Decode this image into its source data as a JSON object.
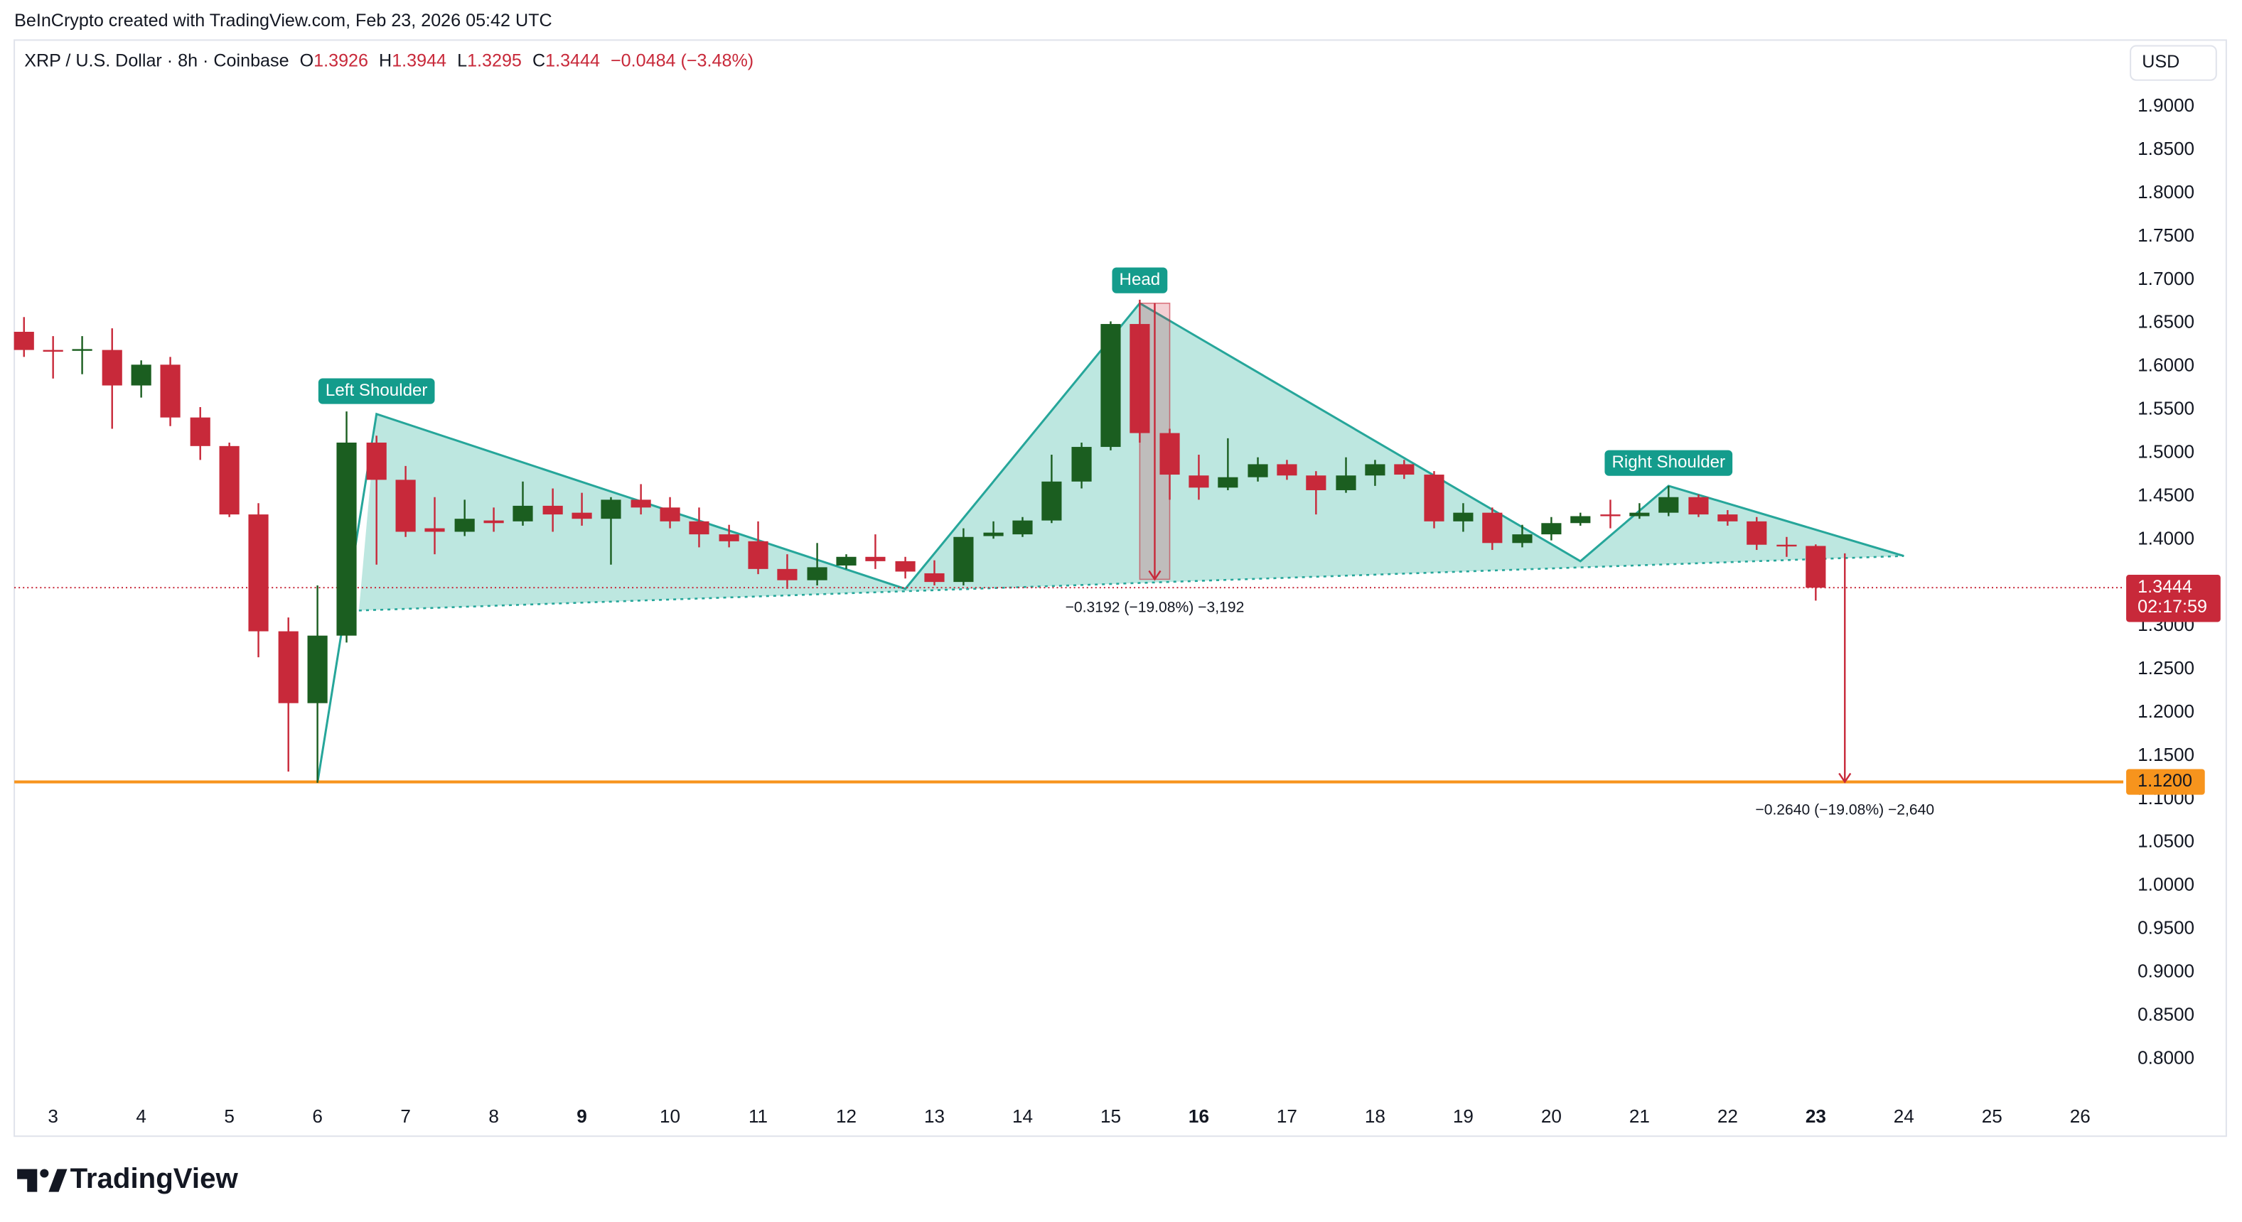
{
  "chart_data": {
    "type": "candlestick",
    "credit": "BeInCrypto created with TradingView.com, Feb 23, 2026 05:42 UTC",
    "title": "XRP / U.S. Dollar · 8h · Coinbase",
    "ohlc_labels": [
      "O",
      "H",
      "L",
      "C"
    ],
    "change": "−0.0484 (−3.48%)",
    "currency": "USD",
    "brand": "TradingView",
    "countdown": "02:17:59",
    "up_color": "#1b5e20",
    "down_color": "#c8293a",
    "candles": {
      "x": [
        2.67,
        3,
        3.33,
        3.67,
        4,
        4.33,
        4.67,
        5,
        5.33,
        5.67,
        6,
        6.33,
        6.67,
        7,
        7.33,
        7.67,
        8,
        8.33,
        8.67,
        9,
        9.33,
        9.67,
        10,
        10.33,
        10.67,
        11,
        11.33,
        11.67,
        12,
        12.33,
        12.67,
        13,
        13.33,
        13.67,
        14,
        14.33,
        14.67,
        15,
        15.33,
        15.67,
        16,
        16.33,
        16.67,
        17,
        17.33,
        17.67,
        18,
        18.33,
        18.67,
        19,
        19.33,
        19.67,
        20,
        20.33,
        20.67,
        21,
        21.33,
        21.67,
        22,
        22.33,
        22.67,
        23
      ],
      "open": [
        1.64,
        1.619,
        1.619,
        1.619,
        1.578,
        1.602,
        1.541,
        1.508,
        1.429,
        1.294,
        1.211,
        1.289,
        1.512,
        1.469,
        1.413,
        1.409,
        1.422,
        1.421,
        1.439,
        1.431,
        1.424,
        1.446,
        1.437,
        1.421,
        1.406,
        1.398,
        1.366,
        1.353,
        1.37,
        1.38,
        1.375,
        1.361,
        1.351,
        1.404,
        1.406,
        1.422,
        1.467,
        1.507,
        1.649,
        1.523,
        1.474,
        1.46,
        1.472,
        1.487,
        1.474,
        1.457,
        1.474,
        1.487,
        1.475,
        1.421,
        1.431,
        1.396,
        1.406,
        1.419,
        1.429,
        1.427,
        1.431,
        1.449,
        1.429,
        1.421,
        1.394,
        1.3926
      ],
      "high": [
        1.657,
        1.635,
        1.635,
        1.644,
        1.607,
        1.611,
        1.553,
        1.512,
        1.442,
        1.31,
        1.347,
        1.548,
        1.52,
        1.485,
        1.449,
        1.446,
        1.437,
        1.467,
        1.459,
        1.454,
        1.449,
        1.464,
        1.449,
        1.437,
        1.417,
        1.421,
        1.383,
        1.396,
        1.383,
        1.406,
        1.38,
        1.376,
        1.413,
        1.421,
        1.426,
        1.498,
        1.512,
        1.652,
        1.677,
        1.528,
        1.498,
        1.517,
        1.495,
        1.492,
        1.479,
        1.495,
        1.492,
        1.492,
        1.479,
        1.442,
        1.437,
        1.417,
        1.426,
        1.431,
        1.446,
        1.442,
        1.462,
        1.452,
        1.434,
        1.426,
        1.403,
        1.3944
      ],
      "low": [
        1.611,
        1.586,
        1.591,
        1.528,
        1.564,
        1.531,
        1.492,
        1.426,
        1.264,
        1.132,
        1.119,
        1.281,
        1.371,
        1.403,
        1.383,
        1.404,
        1.409,
        1.416,
        1.409,
        1.416,
        1.371,
        1.429,
        1.413,
        1.391,
        1.391,
        1.36,
        1.343,
        1.347,
        1.366,
        1.366,
        1.355,
        1.347,
        1.347,
        1.401,
        1.403,
        1.419,
        1.459,
        1.503,
        1.512,
        1.446,
        1.446,
        1.457,
        1.467,
        1.469,
        1.429,
        1.454,
        1.462,
        1.47,
        1.413,
        1.409,
        1.388,
        1.391,
        1.399,
        1.416,
        1.413,
        1.424,
        1.427,
        1.426,
        1.416,
        1.388,
        1.38,
        1.3295
      ],
      "close": [
        1.619,
        1.618,
        1.62,
        1.578,
        1.602,
        1.541,
        1.508,
        1.429,
        1.294,
        1.211,
        1.289,
        1.512,
        1.469,
        1.409,
        1.409,
        1.424,
        1.419,
        1.439,
        1.429,
        1.424,
        1.446,
        1.437,
        1.421,
        1.406,
        1.398,
        1.366,
        1.353,
        1.368,
        1.38,
        1.375,
        1.363,
        1.351,
        1.403,
        1.408,
        1.422,
        1.467,
        1.507,
        1.649,
        1.523,
        1.475,
        1.46,
        1.472,
        1.487,
        1.474,
        1.457,
        1.474,
        1.487,
        1.475,
        1.421,
        1.431,
        1.396,
        1.406,
        1.419,
        1.427,
        1.427,
        1.431,
        1.449,
        1.429,
        1.421,
        1.394,
        1.393,
        1.3444
      ]
    },
    "xlim": [
      2.56,
      26.49
    ],
    "xticks": [
      3,
      4,
      5,
      6,
      7,
      8,
      9,
      10,
      11,
      12,
      13,
      14,
      15,
      16,
      17,
      18,
      19,
      20,
      21,
      22,
      23,
      24,
      25,
      26
    ],
    "week_starts": [
      9,
      16,
      23
    ],
    "ylim": [
      0.752,
      1.977
    ],
    "yticks": [
      {
        "value": 0.8,
        "label": "0.8000"
      },
      {
        "value": 0.85,
        "label": "0.8500"
      },
      {
        "value": 0.9,
        "label": "0.9000"
      },
      {
        "value": 0.95,
        "label": "0.9500"
      },
      {
        "value": 1.0,
        "label": "1.0000"
      },
      {
        "value": 1.05,
        "label": "1.0500"
      },
      {
        "value": 1.1,
        "label": "1.1000"
      },
      {
        "value": 1.15,
        "label": "1.1500"
      },
      {
        "value": 1.2,
        "label": "1.2000"
      },
      {
        "value": 1.25,
        "label": "1.2500"
      },
      {
        "value": 1.3,
        "label": "1.3000"
      },
      {
        "value": 1.4,
        "label": "1.4000"
      },
      {
        "value": 1.45,
        "label": "1.4500"
      },
      {
        "value": 1.5,
        "label": "1.5000"
      },
      {
        "value": 1.55,
        "label": "1.5500"
      },
      {
        "value": 1.6,
        "label": "1.6000"
      },
      {
        "value": 1.65,
        "label": "1.6500"
      },
      {
        "value": 1.7,
        "label": "1.7000"
      },
      {
        "value": 1.75,
        "label": "1.7500"
      },
      {
        "value": 1.8,
        "label": "1.8000"
      },
      {
        "value": 1.85,
        "label": "1.8500"
      },
      {
        "value": 1.9,
        "label": "1.9000"
      }
    ],
    "support": {
      "value": 1.12,
      "label": "1.1200",
      "color": "#f7941d"
    },
    "pattern": {
      "color": "#26a69a",
      "fill": "#b2e3da",
      "points": [
        {
          "x": 6.0,
          "y": 1.119
        },
        {
          "x": 6.67,
          "y": 1.545,
          "label": "Left Shoulder"
        },
        {
          "x": 12.67,
          "y": 1.343
        },
        {
          "x": 15.33,
          "y": 1.673,
          "label": "Head"
        },
        {
          "x": 20.33,
          "y": 1.375
        },
        {
          "x": 21.33,
          "y": 1.462,
          "label": "Right Shoulder"
        },
        {
          "x": 24.0,
          "y": 1.381
        }
      ],
      "neckline": [
        {
          "x": 6.47,
          "y": 1.318
        },
        {
          "x": 24.0,
          "y": 1.381
        }
      ]
    },
    "measurements": [
      {
        "text": "−0.3192 (−19.08%) −3,192",
        "x": [
          15.33,
          15.67
        ],
        "from": 1.673,
        "to": 1.354
      },
      {
        "text": "−0.2640 (−19.08%) −2,640",
        "x": [
          23.33,
          23.33
        ],
        "from": 1.384,
        "to": 1.12
      }
    ]
  }
}
